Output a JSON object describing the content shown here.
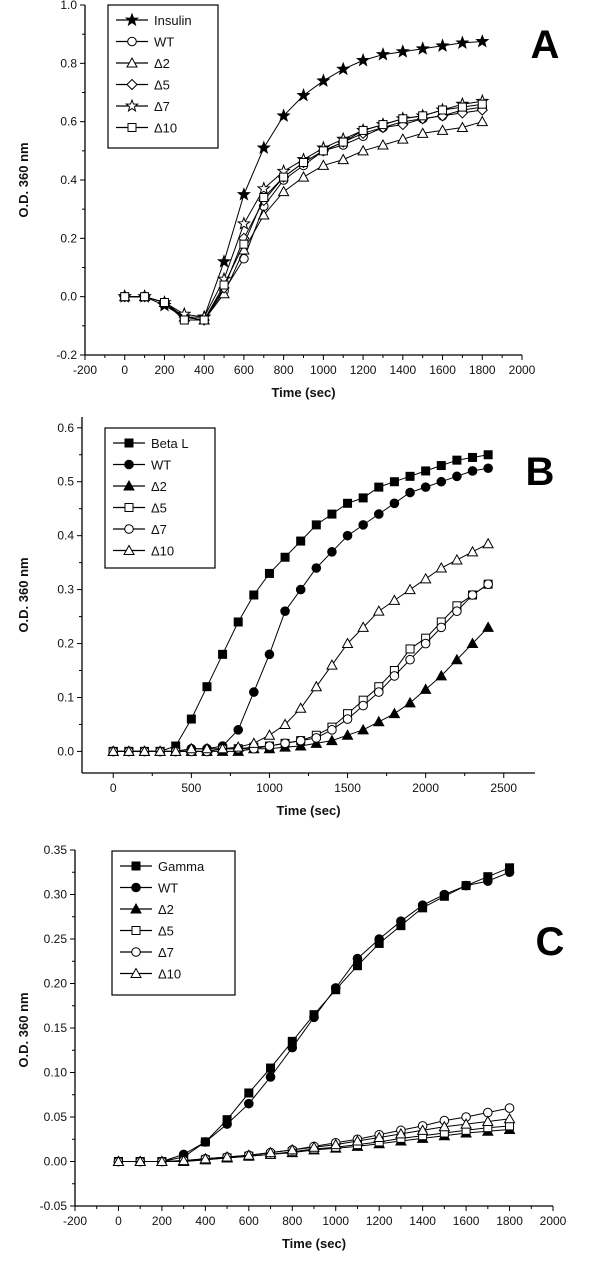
{
  "chart_data": [
    {
      "type": "line",
      "panel_label": "A",
      "xlabel": "Time (sec)",
      "ylabel": "O.D. 360 nm",
      "xlim": [
        -200,
        2000
      ],
      "ylim": [
        -0.2,
        1.0
      ],
      "xticks": [
        -200,
        0,
        200,
        400,
        600,
        800,
        1000,
        1200,
        1400,
        1600,
        1800,
        2000
      ],
      "yticks": [
        -0.2,
        0.0,
        0.2,
        0.4,
        0.6,
        0.8,
        1.0
      ],
      "ytick_labels": [
        "-0.2",
        "0.0",
        "0.2",
        "0.4",
        "0.6",
        "0.8",
        "1.0"
      ],
      "legend_position": "top-left",
      "x": [
        0,
        100,
        200,
        300,
        400,
        500,
        600,
        700,
        800,
        900,
        1000,
        1100,
        1200,
        1300,
        1400,
        1500,
        1600,
        1700,
        1800
      ],
      "series": [
        {
          "name": "Insulin",
          "marker": "star-filled",
          "values": [
            0,
            0,
            -0.03,
            -0.07,
            -0.07,
            0.12,
            0.35,
            0.51,
            0.62,
            0.69,
            0.74,
            0.78,
            0.81,
            0.83,
            0.84,
            0.85,
            0.86,
            0.87,
            0.875
          ]
        },
        {
          "name": "WT",
          "marker": "circle-open",
          "values": [
            0,
            0,
            -0.02,
            -0.07,
            -0.08,
            0.02,
            0.13,
            0.31,
            0.4,
            0.45,
            0.5,
            0.52,
            0.55,
            0.58,
            0.6,
            0.61,
            0.62,
            0.64,
            0.65
          ]
        },
        {
          "name": "Δ2",
          "marker": "triangle-open",
          "values": [
            0,
            0,
            -0.02,
            -0.07,
            -0.08,
            0.01,
            0.16,
            0.28,
            0.36,
            0.41,
            0.45,
            0.47,
            0.5,
            0.52,
            0.54,
            0.56,
            0.57,
            0.58,
            0.6
          ]
        },
        {
          "name": "Δ5",
          "marker": "diamond-open",
          "values": [
            0,
            0,
            -0.02,
            -0.07,
            -0.08,
            0.03,
            0.2,
            0.33,
            0.41,
            0.46,
            0.5,
            0.53,
            0.56,
            0.58,
            0.59,
            0.61,
            0.62,
            0.63,
            0.64
          ]
        },
        {
          "name": "Δ7",
          "marker": "star-open",
          "values": [
            0,
            0,
            -0.02,
            -0.06,
            -0.07,
            0.06,
            0.25,
            0.37,
            0.43,
            0.47,
            0.51,
            0.54,
            0.57,
            0.59,
            0.61,
            0.62,
            0.64,
            0.66,
            0.67
          ]
        },
        {
          "name": "Δ10",
          "marker": "square-open",
          "values": [
            0,
            0,
            -0.02,
            -0.08,
            -0.08,
            0.04,
            0.18,
            0.34,
            0.41,
            0.46,
            0.5,
            0.53,
            0.57,
            0.59,
            0.61,
            0.62,
            0.64,
            0.65,
            0.66
          ]
        }
      ]
    },
    {
      "type": "line",
      "panel_label": "B",
      "xlabel": "Time (sec)",
      "ylabel": "O.D. 360 nm",
      "xlim": [
        -200,
        2700
      ],
      "ylim": [
        -0.04,
        0.62
      ],
      "xticks": [
        0,
        500,
        1000,
        1500,
        2000,
        2500
      ],
      "yticks": [
        0.0,
        0.1,
        0.2,
        0.3,
        0.4,
        0.5,
        0.6
      ],
      "ytick_labels": [
        "0.0",
        "0.1",
        "0.2",
        "0.3",
        "0.4",
        "0.5",
        "0.6"
      ],
      "legend_position": "top-left",
      "x": [
        0,
        100,
        200,
        300,
        400,
        500,
        600,
        700,
        800,
        900,
        1000,
        1100,
        1200,
        1300,
        1400,
        1500,
        1600,
        1700,
        1800,
        1900,
        2000,
        2100,
        2200,
        2300,
        2400
      ],
      "series": [
        {
          "name": "Beta L",
          "marker": "square-filled",
          "values": [
            0,
            0,
            0,
            0,
            0.01,
            0.06,
            0.12,
            0.18,
            0.24,
            0.29,
            0.33,
            0.36,
            0.39,
            0.42,
            0.44,
            0.46,
            0.47,
            0.49,
            0.5,
            0.51,
            0.52,
            0.53,
            0.54,
            0.545,
            0.55
          ]
        },
        {
          "name": "WT",
          "marker": "circle-filled",
          "values": [
            0,
            0,
            0,
            0,
            0,
            0.005,
            0.005,
            0.01,
            0.04,
            0.11,
            0.18,
            0.26,
            0.3,
            0.34,
            0.37,
            0.4,
            0.42,
            0.44,
            0.46,
            0.48,
            0.49,
            0.5,
            0.51,
            0.52,
            0.525
          ]
        },
        {
          "name": "Δ2",
          "marker": "triangle-filled",
          "values": [
            0,
            0,
            0,
            0,
            0,
            0,
            0,
            0,
            0,
            0.005,
            0.005,
            0.008,
            0.01,
            0.015,
            0.02,
            0.03,
            0.04,
            0.055,
            0.07,
            0.09,
            0.115,
            0.14,
            0.17,
            0.2,
            0.23
          ]
        },
        {
          "name": "Δ5",
          "marker": "square-open",
          "values": [
            0,
            0,
            0,
            0,
            0,
            0,
            0,
            0.005,
            0.005,
            0.008,
            0.01,
            0.015,
            0.02,
            0.03,
            0.045,
            0.07,
            0.095,
            0.12,
            0.15,
            0.19,
            0.21,
            0.24,
            0.27,
            0.29,
            0.31
          ]
        },
        {
          "name": "Δ7",
          "marker": "circle-open",
          "values": [
            0,
            0,
            0,
            0,
            0,
            0,
            0,
            0.005,
            0.005,
            0.005,
            0.01,
            0.015,
            0.02,
            0.025,
            0.04,
            0.06,
            0.085,
            0.11,
            0.14,
            0.17,
            0.2,
            0.23,
            0.26,
            0.29,
            0.31
          ]
        },
        {
          "name": "Δ10",
          "marker": "triangle-open",
          "values": [
            0,
            0,
            0,
            0,
            0,
            0.005,
            0.005,
            0.005,
            0.008,
            0.015,
            0.03,
            0.05,
            0.08,
            0.12,
            0.16,
            0.2,
            0.23,
            0.26,
            0.28,
            0.3,
            0.32,
            0.34,
            0.355,
            0.37,
            0.385
          ]
        }
      ]
    },
    {
      "type": "line",
      "panel_label": "C",
      "xlabel": "Time (sec)",
      "ylabel": "O.D. 360 nm",
      "xlim": [
        -200,
        2000
      ],
      "ylim": [
        -0.05,
        0.35
      ],
      "xticks": [
        -200,
        0,
        200,
        400,
        600,
        800,
        1000,
        1200,
        1400,
        1600,
        1800,
        2000
      ],
      "yticks": [
        -0.05,
        0.0,
        0.05,
        0.1,
        0.15,
        0.2,
        0.25,
        0.3,
        0.35
      ],
      "ytick_labels": [
        "-0.05",
        "0.00",
        "0.05",
        "0.10",
        "0.15",
        "0.20",
        "0.25",
        "0.30",
        "0.35"
      ],
      "legend_position": "top-left",
      "x": [
        0,
        100,
        200,
        300,
        400,
        500,
        600,
        700,
        800,
        900,
        1000,
        1100,
        1200,
        1300,
        1400,
        1500,
        1600,
        1700,
        1800
      ],
      "series": [
        {
          "name": "Gamma",
          "marker": "square-filled",
          "values": [
            0,
            0,
            0,
            0.005,
            0.022,
            0.047,
            0.077,
            0.105,
            0.135,
            0.165,
            0.193,
            0.22,
            0.245,
            0.265,
            0.285,
            0.298,
            0.31,
            0.32,
            0.33
          ]
        },
        {
          "name": "WT",
          "marker": "circle-filled",
          "values": [
            0,
            0,
            0,
            0.008,
            0.022,
            0.042,
            0.065,
            0.095,
            0.128,
            0.162,
            0.195,
            0.228,
            0.25,
            0.27,
            0.288,
            0.3,
            0.31,
            0.315,
            0.325
          ]
        },
        {
          "name": "Δ2",
          "marker": "triangle-filled",
          "values": [
            0,
            0,
            0,
            0,
            0.002,
            0.004,
            0.006,
            0.008,
            0.01,
            0.013,
            0.015,
            0.017,
            0.02,
            0.023,
            0.026,
            0.029,
            0.032,
            0.034,
            0.036
          ]
        },
        {
          "name": "Δ5",
          "marker": "square-open",
          "values": [
            0,
            0,
            0,
            0,
            0.002,
            0.004,
            0.006,
            0.008,
            0.011,
            0.014,
            0.016,
            0.019,
            0.022,
            0.026,
            0.029,
            0.032,
            0.035,
            0.038,
            0.04
          ]
        },
        {
          "name": "Δ7",
          "marker": "circle-open",
          "values": [
            0,
            0,
            0,
            0.001,
            0.003,
            0.005,
            0.007,
            0.01,
            0.013,
            0.017,
            0.021,
            0.025,
            0.03,
            0.035,
            0.04,
            0.046,
            0.05,
            0.055,
            0.06
          ]
        },
        {
          "name": "Δ10",
          "marker": "triangle-open",
          "values": [
            0,
            0,
            0,
            0.001,
            0.003,
            0.005,
            0.007,
            0.01,
            0.013,
            0.016,
            0.019,
            0.023,
            0.027,
            0.031,
            0.035,
            0.039,
            0.042,
            0.045,
            0.048
          ]
        }
      ]
    }
  ]
}
